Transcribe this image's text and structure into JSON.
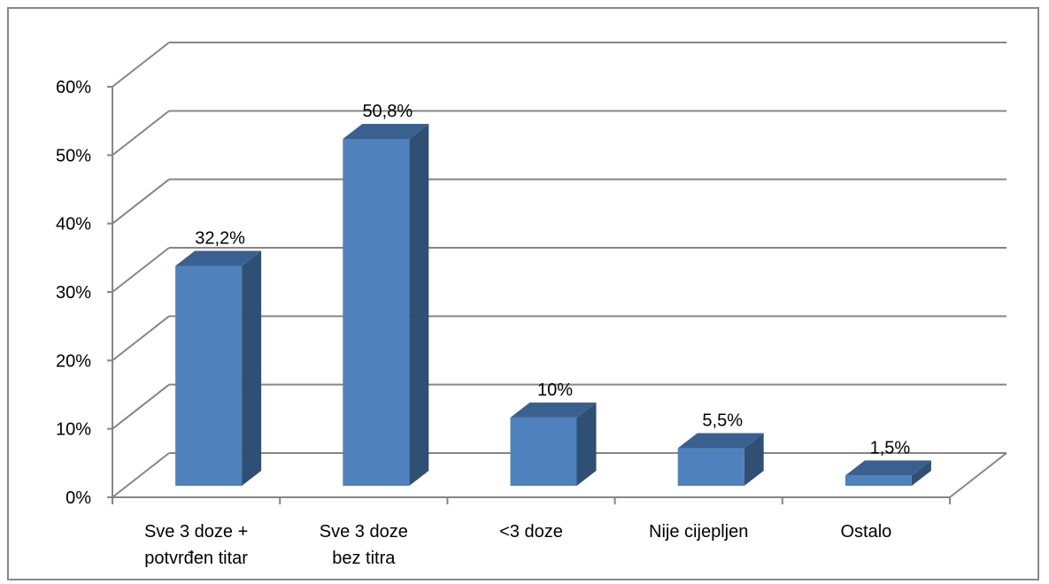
{
  "chart_data": {
    "type": "bar",
    "style": "3d-column",
    "categories": [
      "Sve 3 doze + potvrđen titar",
      "Sve 3 doze bez titra",
      "<3 doze",
      "Nije cijepljen",
      "Ostalo"
    ],
    "category_lines": [
      [
        "Sve 3 doze +",
        "potvrđen titar"
      ],
      [
        "Sve 3 doze",
        "bez titra"
      ],
      [
        "<3 doze"
      ],
      [
        "Nije cijepljen"
      ],
      [
        "Ostalo"
      ]
    ],
    "values": [
      32.2,
      50.8,
      10,
      5.5,
      1.5
    ],
    "data_labels": [
      "32,2%",
      "50,8%",
      "10%",
      "5,5%",
      "1,5%"
    ],
    "ylim": [
      0,
      60
    ],
    "yticks": [
      0,
      10,
      20,
      30,
      40,
      50,
      60
    ],
    "ytick_labels": [
      "0%",
      "10%",
      "20%",
      "30%",
      "40%",
      "50%",
      "60%"
    ],
    "title": "",
    "xlabel": "",
    "ylabel": "",
    "grid": true,
    "legend": "none",
    "colors": {
      "bar_front": "#4f81bd",
      "bar_side": "#2f4f74",
      "bar_top": "#3a6090",
      "grid": "#868686"
    }
  }
}
